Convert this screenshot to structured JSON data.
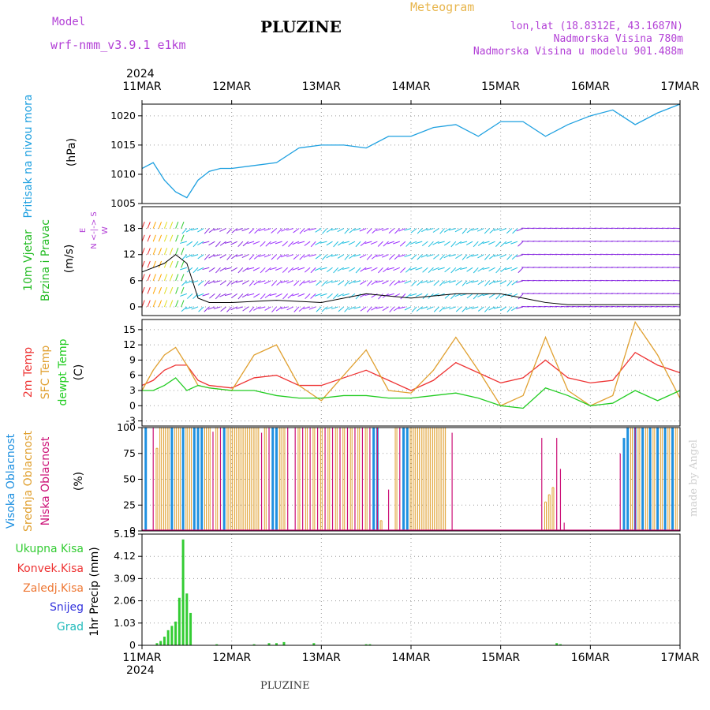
{
  "header": {
    "model_label": "Model",
    "model_name": "wrf-nmm_v3.9.1  e1km",
    "title": "PLUZINE",
    "meteogram_label": "Meteogram",
    "lonlat": "lon,lat (18.8312E, 43.1687N)",
    "elevation": "Nadmorska Visina 780m",
    "model_elevation": "Nadmorska Visina u modelu 901.488m",
    "year": "2024",
    "bottom_title": "PLUZINE",
    "credit": "made by Angel"
  },
  "colors": {
    "pressure": "#1ea0e0",
    "wind_label": "#22bb22",
    "temp2m": "#ee3333",
    "sfc_temp": "#e0a030",
    "dewpoint": "#22cc22",
    "high_cloud": "#1e90e0",
    "mid_cloud": "#e0a030",
    "low_cloud": "#cc1177",
    "precip": "#33cc33",
    "purple": "#b23fd6"
  },
  "panel_labels": {
    "pressure": [
      "Pritisak na nivou mora",
      "(hPa)"
    ],
    "wind": [
      "10m Vjetar",
      "Brzina i Pravac",
      "(m/s)"
    ],
    "wind_compass": "N\n|\nW <-|-> E\n|\nS",
    "temp": [
      "2m Temp",
      "SFC Temp",
      "dewpt Temp",
      "(C)"
    ],
    "cloud": [
      "Visoka Oblacnost",
      "Srednja Oblacnost",
      "Niska Oblacnost",
      "(%)"
    ],
    "precip_unit": "1hr Precip (mm)",
    "precip_legend": [
      "Ukupna Kisa",
      "Konvek.Kisa",
      "Zaledj.Kisa",
      "Snijeg",
      "Grad"
    ]
  },
  "chart_data": [
    {
      "type": "line",
      "name": "pressure",
      "x_hours": [
        0,
        3,
        6,
        9,
        12,
        15,
        18,
        21,
        24,
        30,
        36,
        42,
        48,
        54,
        60,
        66,
        72,
        78,
        84,
        90,
        96,
        102,
        108,
        114,
        120,
        126,
        132,
        138,
        144
      ],
      "values": [
        1011,
        1012,
        1009,
        1007,
        1006,
        1009,
        1010.5,
        1011,
        1011,
        1011.5,
        1012,
        1014.5,
        1015,
        1015,
        1014.5,
        1016.5,
        1016.5,
        1018,
        1018.5,
        1016.5,
        1019,
        1019,
        1016.5,
        1018.5,
        1020,
        1021,
        1018.5,
        1020.5,
        1022
      ],
      "ylim": [
        1005,
        1022
      ],
      "yticks": [
        1005,
        1010,
        1015,
        1020
      ]
    },
    {
      "type": "line",
      "name": "wind_speed",
      "x_hours": [
        0,
        6,
        9,
        12,
        15,
        18,
        24,
        36,
        48,
        60,
        72,
        84,
        96,
        102,
        108,
        114,
        120,
        132,
        144
      ],
      "values": [
        8,
        10,
        12,
        10,
        2,
        1,
        1,
        1.5,
        1,
        3,
        2,
        3,
        3,
        2,
        1,
        0.5,
        0.5,
        0.5,
        0.5
      ],
      "ylim": [
        -2,
        23
      ],
      "yticks": [
        0,
        6,
        12,
        18
      ]
    },
    {
      "type": "line",
      "x_hours": [
        0,
        3,
        6,
        9,
        12,
        15,
        18,
        24,
        30,
        36,
        42,
        48,
        54,
        60,
        66,
        72,
        78,
        84,
        90,
        96,
        102,
        108,
        114,
        120,
        126,
        132,
        138,
        144
      ],
      "ylim": [
        -4,
        17
      ],
      "yticks": [
        -3,
        0,
        3,
        6,
        9,
        12,
        15
      ],
      "series": [
        {
          "name": "2m Temp",
          "values": [
            4,
            5,
            7,
            8,
            8,
            5,
            4,
            3.5,
            5.5,
            6,
            4,
            4,
            5.5,
            7,
            5,
            3,
            5,
            8.5,
            6.5,
            4.5,
            5.5,
            9,
            5.5,
            4.5,
            5,
            10.5,
            8,
            6.5
          ]
        },
        {
          "name": "SFC Temp",
          "values": [
            3,
            7,
            10,
            11.5,
            8,
            4,
            3.5,
            3,
            10,
            12,
            4,
            1,
            6,
            11,
            3,
            2.5,
            7,
            13.5,
            7,
            0,
            2,
            13.5,
            3,
            0,
            2,
            16.5,
            10,
            1.5
          ]
        },
        {
          "name": "dewpt Temp",
          "values": [
            3,
            3,
            4,
            5.5,
            3,
            4,
            3.5,
            3,
            3,
            2,
            1.5,
            1.5,
            2,
            2,
            1.5,
            1.5,
            2,
            2.5,
            1.5,
            0,
            -0.5,
            3.5,
            2,
            0,
            0.5,
            3,
            1,
            3
          ]
        }
      ]
    },
    {
      "type": "bar",
      "ylim": [
        0,
        100
      ],
      "yticks": [
        0,
        25,
        50,
        75,
        100
      ],
      "series": [
        {
          "name": "Visoka Oblacnost",
          "x_hours": [
            1,
            8,
            11,
            14,
            15,
            16,
            22,
            35,
            36,
            62,
            63,
            70,
            71,
            129,
            130,
            132,
            134,
            136,
            138,
            140,
            142
          ],
          "values": [
            100,
            100,
            100,
            100,
            100,
            100,
            100,
            100,
            100,
            100,
            100,
            100,
            100,
            90,
            100,
            100,
            100,
            100,
            100,
            100,
            100
          ]
        },
        {
          "name": "Srednja Oblacnost",
          "x_hours": [
            4,
            5,
            6,
            7,
            9,
            10,
            12,
            13,
            17,
            18,
            20,
            23,
            24,
            25,
            26,
            27,
            28,
            29,
            30,
            31,
            33,
            37,
            38,
            42,
            44,
            46,
            48,
            50,
            52,
            54,
            56,
            58,
            60,
            64,
            68,
            72,
            73,
            74,
            75,
            76,
            77,
            78,
            79,
            80,
            81,
            108,
            109,
            110,
            131,
            133,
            135,
            137,
            139,
            141,
            143
          ],
          "values": [
            80,
            100,
            100,
            100,
            100,
            100,
            100,
            100,
            100,
            100,
            100,
            100,
            100,
            100,
            100,
            100,
            100,
            100,
            100,
            100,
            100,
            100,
            100,
            100,
            100,
            100,
            100,
            100,
            100,
            100,
            100,
            100,
            100,
            10,
            100,
            100,
            100,
            100,
            100,
            100,
            100,
            100,
            100,
            100,
            100,
            28,
            35,
            42,
            100,
            100,
            100,
            100,
            100,
            100,
            100
          ]
        },
        {
          "name": "Niska Oblacnost",
          "x_hours": [
            3,
            19,
            21,
            32,
            34,
            39,
            41,
            43,
            45,
            47,
            49,
            51,
            53,
            55,
            57,
            59,
            61,
            63,
            66,
            69,
            83,
            107,
            111,
            112,
            113,
            128,
            132
          ],
          "values": [
            100,
            96,
            100,
            95,
            100,
            100,
            100,
            100,
            100,
            100,
            100,
            100,
            100,
            100,
            100,
            100,
            100,
            100,
            40,
            100,
            95,
            90,
            90,
            60,
            8,
            75,
            100
          ]
        }
      ]
    },
    {
      "type": "bar",
      "name": "Ukupna Kisa",
      "x_hours": [
        4,
        5,
        6,
        7,
        8,
        9,
        10,
        11,
        12,
        13,
        20,
        30,
        34,
        36,
        38,
        46,
        60,
        61,
        111,
        112
      ],
      "values": [
        0.1,
        0.2,
        0.4,
        0.7,
        0.9,
        1.1,
        2.2,
        4.9,
        2.4,
        1.5,
        0.05,
        0.05,
        0.1,
        0.1,
        0.15,
        0.1,
        0.05,
        0.05,
        0.1,
        0.05
      ],
      "ylim": [
        0,
        5.15
      ],
      "yticks": [
        0,
        1.03,
        2.06,
        3.09,
        4.12,
        5.15
      ]
    }
  ],
  "x_axis": {
    "top_labels": [
      "11MAR",
      "12MAR",
      "13MAR",
      "14MAR",
      "15MAR",
      "16MAR",
      "17MAR"
    ],
    "bottom_labels": [
      "11MAR",
      "12MAR",
      "13MAR",
      "14MAR",
      "15MAR",
      "16MAR",
      "17MAR"
    ],
    "range_hours": [
      0,
      144
    ]
  }
}
